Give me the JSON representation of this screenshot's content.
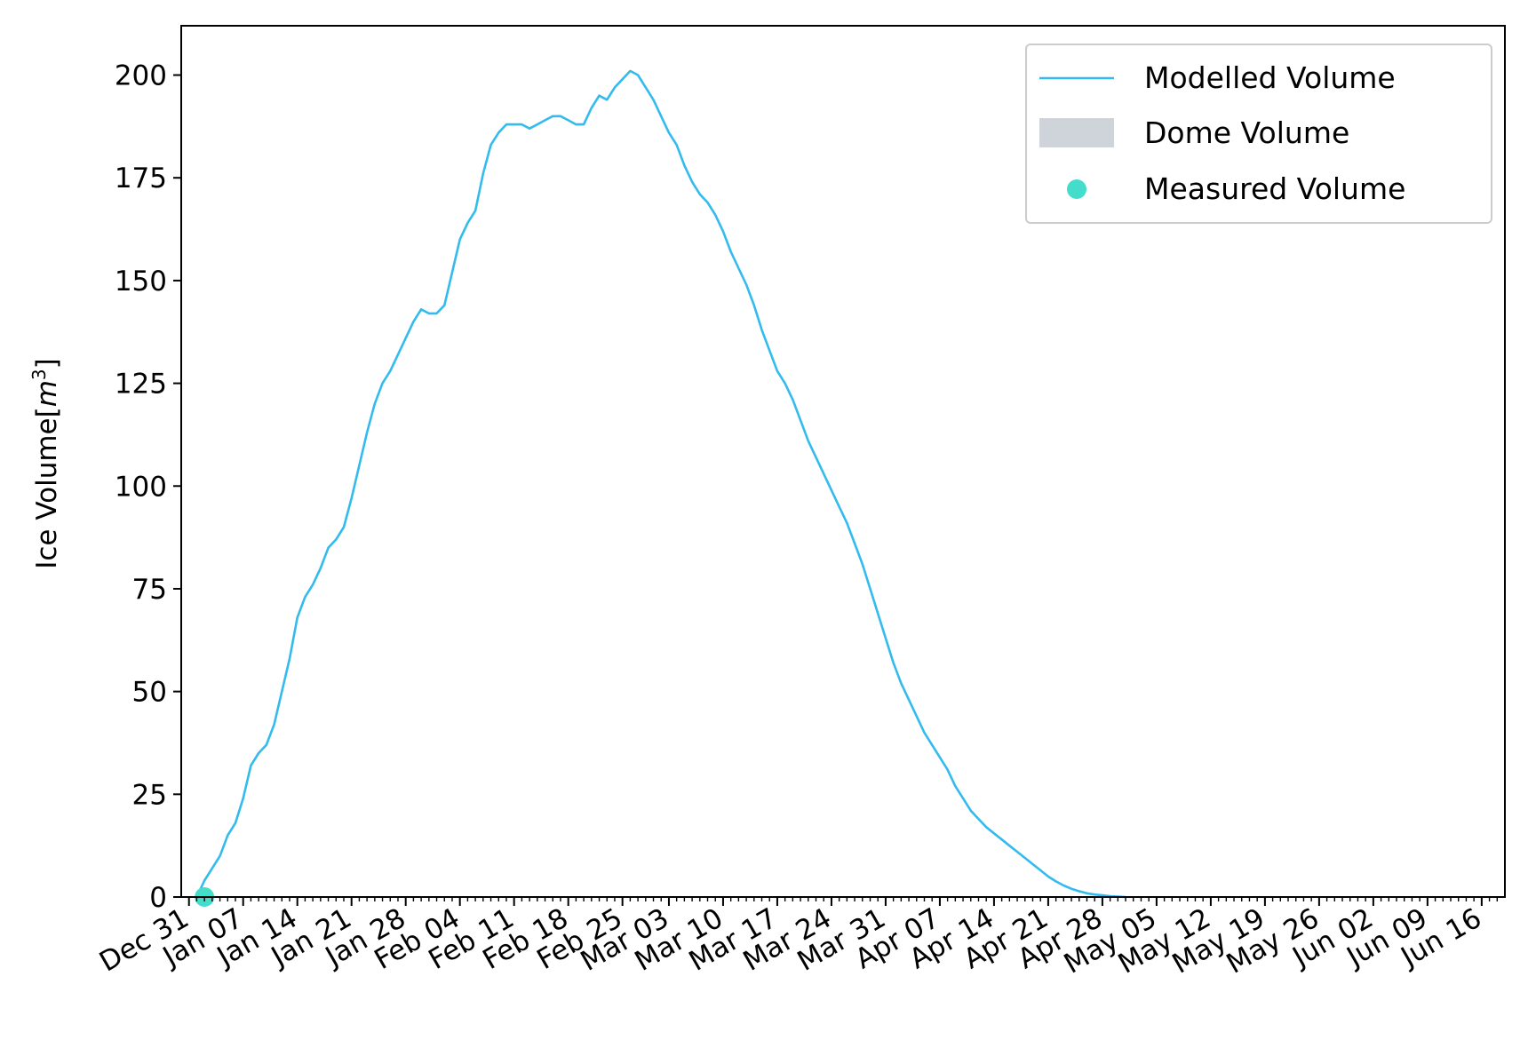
{
  "chart_data": {
    "type": "line",
    "title": "",
    "xlabel": "",
    "ylabel": "Ice Volume[m3]",
    "x_axis_type": "date",
    "year_displayed": false,
    "xlim": [
      "12-30",
      "06-19"
    ],
    "ylim": [
      0,
      212
    ],
    "y_ticks": [
      0,
      25,
      50,
      75,
      100,
      125,
      150,
      175,
      200
    ],
    "x_tick_labels": [
      "Dec 31",
      "Jan 07",
      "Jan 14",
      "Jan 21",
      "Jan 28",
      "Feb 04",
      "Feb 11",
      "Feb 18",
      "Feb 25",
      "Mar 03",
      "Mar 10",
      "Mar 17",
      "Mar 24",
      "Mar 31",
      "Apr 07",
      "Apr 14",
      "Apr 21",
      "Apr 28",
      "May 05",
      "May 12",
      "May 19",
      "May 26",
      "Jun 02",
      "Jun 09",
      "Jun 16"
    ],
    "legend": {
      "placement": "upper right",
      "entries": [
        "Modelled Volume",
        "Dome Volume",
        "Measured Volume"
      ]
    },
    "series": [
      {
        "name": "Modelled Volume",
        "kind": "line",
        "color": "#33bbee",
        "points": [
          [
            "01-01",
            0
          ],
          [
            "01-02",
            4
          ],
          [
            "01-03",
            7
          ],
          [
            "01-04",
            10
          ],
          [
            "01-05",
            15
          ],
          [
            "01-06",
            18
          ],
          [
            "01-07",
            24
          ],
          [
            "01-08",
            32
          ],
          [
            "01-09",
            35
          ],
          [
            "01-10",
            37
          ],
          [
            "01-11",
            42
          ],
          [
            "01-12",
            50
          ],
          [
            "01-13",
            58
          ],
          [
            "01-14",
            68
          ],
          [
            "01-15",
            73
          ],
          [
            "01-16",
            76
          ],
          [
            "01-17",
            80
          ],
          [
            "01-18",
            85
          ],
          [
            "01-19",
            87
          ],
          [
            "01-20",
            90
          ],
          [
            "01-21",
            97
          ],
          [
            "01-22",
            105
          ],
          [
            "01-23",
            113
          ],
          [
            "01-24",
            120
          ],
          [
            "01-25",
            125
          ],
          [
            "01-26",
            128
          ],
          [
            "01-27",
            132
          ],
          [
            "01-28",
            136
          ],
          [
            "01-29",
            140
          ],
          [
            "01-30",
            143
          ],
          [
            "01-31",
            142
          ],
          [
            "02-01",
            142
          ],
          [
            "02-02",
            144
          ],
          [
            "02-03",
            152
          ],
          [
            "02-04",
            160
          ],
          [
            "02-05",
            164
          ],
          [
            "02-06",
            167
          ],
          [
            "02-07",
            176
          ],
          [
            "02-08",
            183
          ],
          [
            "02-09",
            186
          ],
          [
            "02-10",
            188
          ],
          [
            "02-11",
            188
          ],
          [
            "02-12",
            188
          ],
          [
            "02-13",
            187
          ],
          [
            "02-14",
            188
          ],
          [
            "02-15",
            189
          ],
          [
            "02-16",
            190
          ],
          [
            "02-17",
            190
          ],
          [
            "02-18",
            189
          ],
          [
            "02-19",
            188
          ],
          [
            "02-20",
            188
          ],
          [
            "02-21",
            192
          ],
          [
            "02-22",
            195
          ],
          [
            "02-23",
            194
          ],
          [
            "02-24",
            197
          ],
          [
            "02-25",
            199
          ],
          [
            "02-26",
            201
          ],
          [
            "02-27",
            200
          ],
          [
            "02-28",
            197
          ],
          [
            "03-01",
            194
          ],
          [
            "03-02",
            190
          ],
          [
            "03-03",
            186
          ],
          [
            "03-04",
            183
          ],
          [
            "03-05",
            178
          ],
          [
            "03-06",
            174
          ],
          [
            "03-07",
            171
          ],
          [
            "03-08",
            169
          ],
          [
            "03-09",
            166
          ],
          [
            "03-10",
            162
          ],
          [
            "03-11",
            157
          ],
          [
            "03-12",
            153
          ],
          [
            "03-13",
            149
          ],
          [
            "03-14",
            144
          ],
          [
            "03-15",
            138
          ],
          [
            "03-16",
            133
          ],
          [
            "03-17",
            128
          ],
          [
            "03-18",
            125
          ],
          [
            "03-19",
            121
          ],
          [
            "03-20",
            116
          ],
          [
            "03-21",
            111
          ],
          [
            "03-22",
            107
          ],
          [
            "03-23",
            103
          ],
          [
            "03-24",
            99
          ],
          [
            "03-25",
            95
          ],
          [
            "03-26",
            91
          ],
          [
            "03-27",
            86
          ],
          [
            "03-28",
            81
          ],
          [
            "03-29",
            75
          ],
          [
            "03-30",
            69
          ],
          [
            "03-31",
            63
          ],
          [
            "04-01",
            57
          ],
          [
            "04-02",
            52
          ],
          [
            "04-03",
            48
          ],
          [
            "04-04",
            44
          ],
          [
            "04-05",
            40
          ],
          [
            "04-06",
            37
          ],
          [
            "04-07",
            34
          ],
          [
            "04-08",
            31
          ],
          [
            "04-09",
            27
          ],
          [
            "04-10",
            24
          ],
          [
            "04-11",
            21
          ],
          [
            "04-12",
            19
          ],
          [
            "04-13",
            17
          ],
          [
            "04-14",
            15.5
          ],
          [
            "04-15",
            14
          ],
          [
            "04-16",
            12.5
          ],
          [
            "04-17",
            11
          ],
          [
            "04-18",
            9.5
          ],
          [
            "04-19",
            8
          ],
          [
            "04-20",
            6.5
          ],
          [
            "04-21",
            5
          ],
          [
            "04-22",
            3.8
          ],
          [
            "04-23",
            2.8
          ],
          [
            "04-24",
            2
          ],
          [
            "04-25",
            1.4
          ],
          [
            "04-26",
            0.9
          ],
          [
            "04-27",
            0.6
          ],
          [
            "04-28",
            0.4
          ],
          [
            "04-29",
            0.2
          ],
          [
            "05-01",
            0
          ]
        ]
      },
      {
        "name": "Dome Volume",
        "kind": "area",
        "color": "#cfd4db",
        "points": [
          [
            "01-01",
            0
          ],
          [
            "05-01",
            0
          ]
        ]
      },
      {
        "name": "Measured Volume",
        "kind": "scatter",
        "color": "#44ddcc",
        "points": [
          [
            "01-02",
            0
          ]
        ]
      }
    ]
  }
}
